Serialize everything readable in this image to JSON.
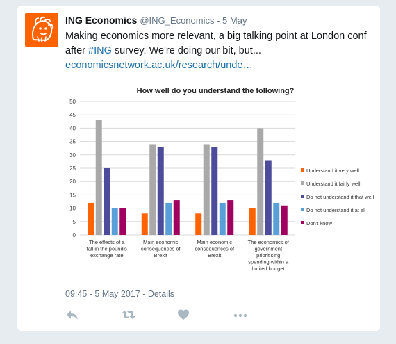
{
  "tweet": {
    "display_name": "ING Economics",
    "handle": "@ING_Economics",
    "separator": " - ",
    "date": "5 May",
    "text_before": "Making economics more relevant, a big talking point at London conf after ",
    "hashtag": "#ING",
    "text_after": " survey. We're doing our bit, but...",
    "link": "economicsnetwork.ac.uk/research/unde…",
    "timestamp": "09:45 - 5 May 2017",
    "details_label": "Details"
  },
  "icons": {
    "avatar": "ing-lion-logo",
    "reply": "reply-icon",
    "retweet": "retweet-icon",
    "like": "heart-icon",
    "more": "more-dots-icon"
  },
  "colors": {
    "brand_orange": "#ff6200",
    "link_blue": "#1b6fa8",
    "muted": "#657786",
    "action_icon": "#aab8c2"
  },
  "chart_data": {
    "type": "bar",
    "title": "How well do you understand the following?",
    "xlabel": "",
    "ylabel": "",
    "ylim": [
      0,
      50
    ],
    "yticks": [
      0,
      5,
      10,
      15,
      20,
      25,
      30,
      35,
      40,
      45,
      50
    ],
    "grid": true,
    "legend_position": "right",
    "categories": [
      [
        "The effects of a",
        "fall in the pound's",
        "exchange rate"
      ],
      [
        "Main economic",
        "consequences of",
        "Brexit"
      ],
      [
        "Main economic",
        "consequences of",
        "Brexit"
      ],
      [
        "The economics of",
        "government",
        "prioritising",
        "spending within a",
        "limited budget"
      ]
    ],
    "series": [
      {
        "name": "Understand it very well",
        "color": "#ff6200",
        "values": [
          12,
          8,
          8,
          10
        ]
      },
      {
        "name": "Understand it fairly well",
        "color": "#a9a9a9",
        "values": [
          43,
          34,
          34,
          40
        ]
      },
      {
        "name": "Do not understand it that well",
        "color": "#4c4c9a",
        "values": [
          25,
          33,
          33,
          28
        ]
      },
      {
        "name": "Do not understand it at all",
        "color": "#5aa0d8",
        "values": [
          10,
          12,
          12,
          12
        ]
      },
      {
        "name": "Don't know",
        "color": "#a0005f",
        "values": [
          10,
          13,
          13,
          11
        ]
      }
    ]
  }
}
